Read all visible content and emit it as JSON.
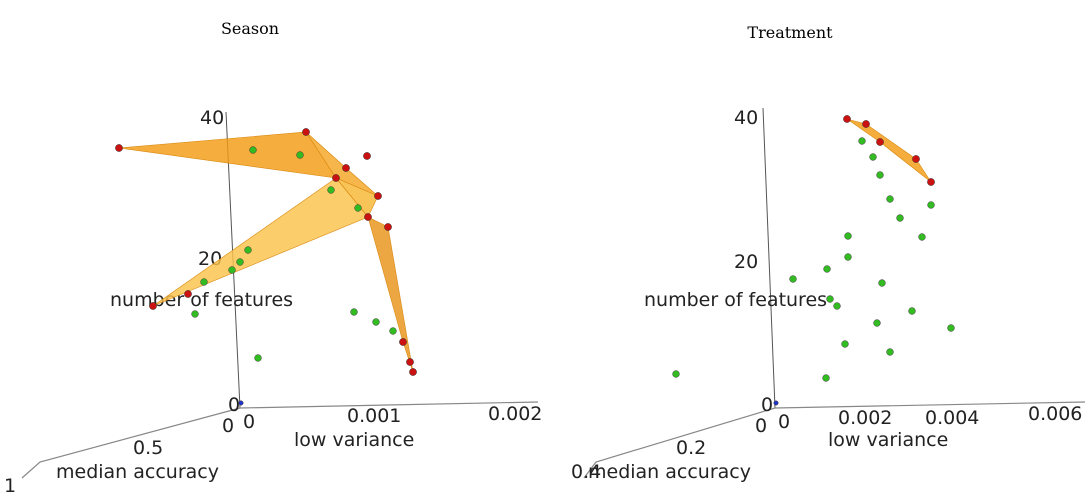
{
  "chart_data": [
    {
      "type": "scatter3d",
      "title": "Season",
      "axes": {
        "z": {
          "label": "number of features",
          "ticks": [
            "0",
            "20",
            "40"
          ]
        },
        "x": {
          "label": "low variance",
          "ticks": [
            "0",
            "0.001",
            "0.002"
          ]
        },
        "y": {
          "label": "median accuracy",
          "ticks": [
            "0",
            "0.5",
            "1"
          ]
        }
      },
      "colors": {
        "pareto": "#cc1111",
        "other": "#33bb22",
        "origin": "#2233cc",
        "surface": "#f5a623"
      },
      "points": {
        "pareto": [
          [
            119,
            148
          ],
          [
            306,
            132
          ],
          [
            346,
            168
          ],
          [
            367,
            156
          ],
          [
            336,
            178
          ],
          [
            378,
            196
          ],
          [
            368,
            217
          ],
          [
            388,
            227
          ],
          [
            188,
            294
          ],
          [
            153,
            306
          ],
          [
            403,
            342
          ],
          [
            410,
            362
          ],
          [
            413,
            372
          ]
        ],
        "other": [
          [
            253,
            150
          ],
          [
            300,
            155
          ],
          [
            331,
            190
          ],
          [
            358,
            208
          ],
          [
            248,
            250
          ],
          [
            240,
            262
          ],
          [
            232,
            270
          ],
          [
            204,
            282
          ],
          [
            195,
            314
          ],
          [
            354,
            312
          ],
          [
            376,
            322
          ],
          [
            393,
            331
          ],
          [
            258,
            358
          ]
        ],
        "origin": [
          [
            241,
            403
          ]
        ]
      },
      "surface_polygons": [
        [
          [
            119,
            148
          ],
          [
            306,
            132
          ],
          [
            336,
            178
          ]
        ],
        [
          [
            306,
            132
          ],
          [
            346,
            168
          ],
          [
            378,
            196
          ],
          [
            336,
            178
          ]
        ],
        [
          [
            336,
            178
          ],
          [
            378,
            196
          ],
          [
            368,
            217
          ]
        ],
        [
          [
            153,
            306
          ],
          [
            336,
            178
          ],
          [
            368,
            217
          ]
        ],
        [
          [
            368,
            217
          ],
          [
            388,
            227
          ],
          [
            413,
            372
          ],
          [
            403,
            342
          ]
        ]
      ]
    },
    {
      "type": "scatter3d",
      "title": "Treatment",
      "axes": {
        "z": {
          "label": "number of features",
          "ticks": [
            "0",
            "20",
            "40"
          ]
        },
        "x": {
          "label": "low variance",
          "ticks": [
            "0",
            "0.002",
            "0.004",
            "0.006"
          ]
        },
        "y": {
          "label": "median accuracy",
          "ticks": [
            "0",
            "0.2",
            "0.4"
          ]
        }
      },
      "colors": {
        "pareto": "#cc1111",
        "other": "#33bb22",
        "origin": "#2233cc",
        "surface": "#f5a623"
      },
      "points": {
        "pareto": [
          [
            847,
            119
          ],
          [
            866,
            124
          ],
          [
            880,
            142
          ],
          [
            916,
            159
          ],
          [
            931,
            182
          ]
        ],
        "other": [
          [
            862,
            141
          ],
          [
            873,
            157
          ],
          [
            880,
            175
          ],
          [
            890,
            199
          ],
          [
            900,
            218
          ],
          [
            931,
            205
          ],
          [
            922,
            237
          ],
          [
            848,
            236
          ],
          [
            848,
            257
          ],
          [
            827,
            269
          ],
          [
            793,
            279
          ],
          [
            882,
            283
          ],
          [
            837,
            306
          ],
          [
            830,
            299
          ],
          [
            912,
            311
          ],
          [
            877,
            323
          ],
          [
            951,
            328
          ],
          [
            845,
            344
          ],
          [
            890,
            352
          ],
          [
            826,
            378
          ],
          [
            676,
            374
          ]
        ],
        "origin": [
          [
            776,
            403
          ]
        ]
      },
      "surface_polygons": [
        [
          [
            847,
            119
          ],
          [
            866,
            124
          ],
          [
            916,
            159
          ],
          [
            931,
            182
          ],
          [
            880,
            142
          ]
        ]
      ]
    }
  ]
}
